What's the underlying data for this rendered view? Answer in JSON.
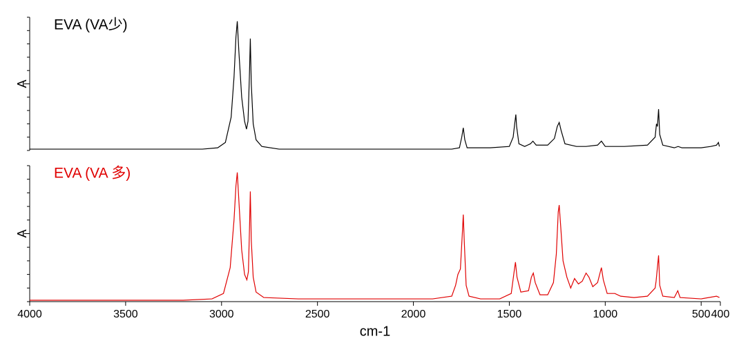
{
  "chart_data": [
    {
      "type": "line",
      "title": "EVA (VA少)",
      "ylabel": "A",
      "color": "#000000",
      "xlim": [
        4000,
        400
      ],
      "ylim": [
        0,
        1
      ],
      "x": [
        4000,
        3800,
        3600,
        3400,
        3200,
        3100,
        3020,
        2980,
        2950,
        2935,
        2925,
        2918,
        2910,
        2895,
        2880,
        2870,
        2862,
        2855,
        2850,
        2845,
        2835,
        2820,
        2790,
        2700,
        2400,
        2000,
        1800,
        1760,
        1748,
        1740,
        1732,
        1720,
        1600,
        1500,
        1480,
        1472,
        1466,
        1462,
        1450,
        1420,
        1390,
        1377,
        1360,
        1300,
        1265,
        1250,
        1240,
        1230,
        1210,
        1150,
        1100,
        1040,
        1020,
        1000,
        900,
        780,
        740,
        733,
        728,
        722,
        716,
        700,
        640,
        620,
        600,
        500,
        450,
        420,
        410,
        405
      ],
      "values": [
        0.01,
        0.01,
        0.01,
        0.01,
        0.01,
        0.01,
        0.02,
        0.06,
        0.25,
        0.55,
        0.85,
        0.97,
        0.75,
        0.4,
        0.22,
        0.16,
        0.22,
        0.55,
        0.84,
        0.5,
        0.2,
        0.08,
        0.03,
        0.01,
        0.01,
        0.01,
        0.01,
        0.02,
        0.1,
        0.17,
        0.08,
        0.02,
        0.02,
        0.03,
        0.1,
        0.2,
        0.27,
        0.18,
        0.05,
        0.03,
        0.05,
        0.07,
        0.04,
        0.04,
        0.09,
        0.18,
        0.21,
        0.15,
        0.05,
        0.03,
        0.03,
        0.04,
        0.07,
        0.03,
        0.03,
        0.04,
        0.1,
        0.2,
        0.18,
        0.31,
        0.12,
        0.04,
        0.02,
        0.03,
        0.02,
        0.02,
        0.03,
        0.04,
        0.06,
        0.03
      ]
    },
    {
      "type": "line",
      "title": "EVA (VA 多)",
      "ylabel": "A",
      "xlabel": "cm-1",
      "color": "#e00000",
      "xlim": [
        4000,
        400
      ],
      "ylim": [
        0,
        1
      ],
      "xticks": [
        4000,
        3500,
        3000,
        2500,
        2000,
        1500,
        1000,
        500,
        400
      ],
      "x": [
        4000,
        3600,
        3200,
        3050,
        2990,
        2955,
        2935,
        2925,
        2918,
        2910,
        2895,
        2880,
        2868,
        2860,
        2855,
        2850,
        2845,
        2835,
        2820,
        2780,
        2600,
        2200,
        1900,
        1800,
        1780,
        1768,
        1755,
        1745,
        1740,
        1735,
        1725,
        1710,
        1650,
        1550,
        1490,
        1475,
        1468,
        1460,
        1440,
        1400,
        1385,
        1375,
        1365,
        1340,
        1300,
        1270,
        1255,
        1245,
        1240,
        1232,
        1220,
        1200,
        1180,
        1160,
        1140,
        1120,
        1100,
        1085,
        1065,
        1040,
        1020,
        1010,
        990,
        950,
        920,
        850,
        780,
        740,
        735,
        722,
        716,
        700,
        640,
        622,
        610,
        500,
        420,
        405
      ],
      "values": [
        0.01,
        0.01,
        0.01,
        0.02,
        0.06,
        0.25,
        0.6,
        0.85,
        0.95,
        0.75,
        0.38,
        0.2,
        0.16,
        0.22,
        0.5,
        0.81,
        0.45,
        0.18,
        0.07,
        0.03,
        0.02,
        0.02,
        0.02,
        0.04,
        0.12,
        0.2,
        0.24,
        0.5,
        0.64,
        0.45,
        0.12,
        0.04,
        0.02,
        0.02,
        0.06,
        0.22,
        0.29,
        0.18,
        0.07,
        0.08,
        0.18,
        0.21,
        0.14,
        0.05,
        0.05,
        0.14,
        0.35,
        0.66,
        0.71,
        0.55,
        0.3,
        0.18,
        0.1,
        0.17,
        0.13,
        0.15,
        0.21,
        0.18,
        0.11,
        0.14,
        0.25,
        0.16,
        0.06,
        0.06,
        0.04,
        0.03,
        0.04,
        0.1,
        0.15,
        0.34,
        0.12,
        0.04,
        0.03,
        0.08,
        0.03,
        0.02,
        0.04,
        0.03
      ]
    }
  ]
}
